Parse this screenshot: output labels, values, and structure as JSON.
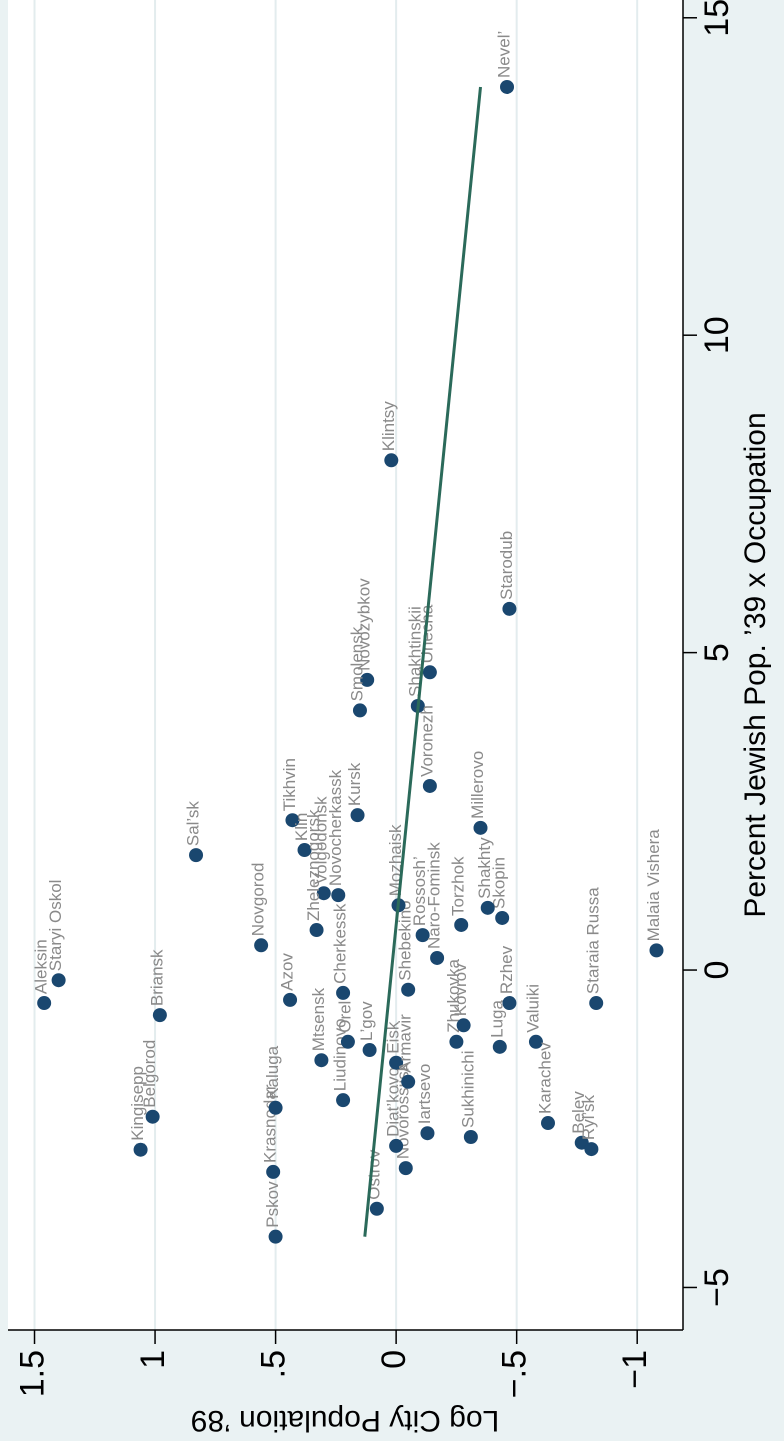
{
  "chart_data": {
    "type": "scatter",
    "x_label": "Percent Jewish Pop. ’39 x Occupation",
    "y_label": "Log City Population ’89",
    "xlim": [
      -5.67,
      15.28
    ],
    "ylim": [
      -1.19,
      1.61
    ],
    "xticks": [
      {
        "value": -5,
        "label": "−5"
      },
      0,
      5,
      10,
      15
    ],
    "yticks": [
      {
        "value": -1,
        "label": "−1"
      },
      {
        "value": -0.5,
        "label": "−.5"
      },
      0,
      {
        "value": 0.5,
        "label": ".5"
      },
      1,
      1.5
    ],
    "grid": true,
    "series": [
      {
        "type": "scatter",
        "color": "#1a476f",
        "labels": [
          "Nevel’",
          "Klintsy",
          "Starodub",
          "Unecha",
          "Shakhtinskii",
          "Novozybkov",
          "Smolensk",
          "Voronezh",
          "Millerovo",
          "Kursk",
          "Tikhvin",
          "Klin",
          "Sal’sk",
          "Novocherkassk",
          "Volgodonsk",
          "Zheleznogorsk",
          "Novgorod",
          "Staryi Oskol",
          "Aleksin",
          "Cherkessk",
          "Azov",
          "Briansk",
          "Skopin",
          "Rzhev",
          "Staraia Russa",
          "Malaia Vishera",
          "Valuiki",
          "Luga",
          "Karachev",
          "Belev",
          "Ryl’sk",
          "Sukhinichi",
          "Iartsevo",
          "Novorossiisk",
          "Diat’kovo",
          "Ostrov",
          "Pskov",
          "Krasnodar",
          "Kaluga",
          "Kingisepp",
          "Belgorod",
          "Liudinovo",
          "Mtsensk",
          "Orel",
          "L’gov",
          "Eisk",
          "Armavir",
          "Zhukovka",
          "Kovrov",
          "Shebekino",
          "Rossosh’",
          "Naro-Fominsk",
          "Mozhaisk",
          "Torzhok",
          "Shakhty"
        ],
        "x": [
          13.91,
          8.03,
          5.69,
          4.69,
          4.16,
          4.57,
          4.09,
          2.9,
          2.24,
          2.44,
          2.36,
          1.89,
          1.81,
          1.18,
          1.21,
          0.63,
          0.39,
          -0.16,
          -0.52,
          -0.36,
          -0.47,
          -0.71,
          0.82,
          -0.52,
          -0.52,
          0.31,
          -1.13,
          -1.21,
          -2.41,
          -2.72,
          -2.82,
          -2.63,
          -2.57,
          -3.12,
          -2.77,
          -3.76,
          -4.2,
          -3.18,
          -2.17,
          -2.83,
          -2.31,
          -2.05,
          -1.42,
          -1.13,
          -1.26,
          -1.46,
          -1.76,
          -1.13,
          -0.87,
          -0.31,
          0.55,
          0.19,
          1.02,
          0.71,
          0.98
        ],
        "values": [
          -0.46,
          0.02,
          -0.47,
          -0.14,
          -0.09,
          0.12,
          0.15,
          -0.14,
          -0.35,
          0.16,
          0.43,
          0.38,
          0.83,
          0.24,
          0.3,
          0.33,
          0.56,
          1.4,
          1.46,
          0.22,
          0.44,
          0.98,
          -0.44,
          -0.47,
          -0.83,
          -1.08,
          -0.58,
          -0.43,
          -0.63,
          -0.77,
          -0.81,
          -0.31,
          -0.13,
          -0.04,
          0.0,
          0.08,
          0.5,
          0.51,
          0.5,
          1.06,
          1.01,
          0.22,
          0.31,
          0.2,
          0.11,
          0.0,
          -0.05,
          -0.25,
          -0.28,
          -0.05,
          -0.11,
          -0.17,
          -0.01,
          -0.27,
          -0.38
        ]
      },
      {
        "type": "line",
        "color": "#2b6a5a",
        "x": [
          -4.2,
          13.91
        ],
        "values": [
          0.13,
          -0.35
        ]
      }
    ]
  }
}
